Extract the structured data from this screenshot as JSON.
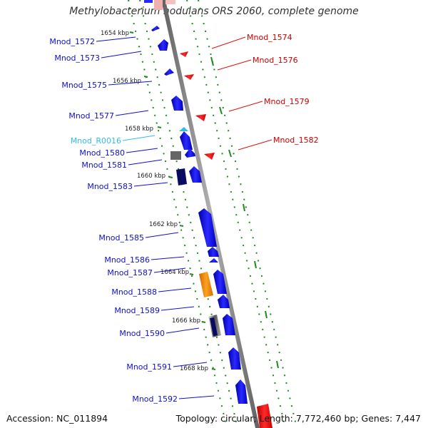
{
  "title": "Methylobacterium nodulans ORS 2060, complete genome",
  "accession_label": "Accession: NC_011894",
  "topology_label": "Topology: circular; Length: 7,772,460 bp; Genes: 7,447",
  "kbp_ticks": [
    "1654 kbp",
    "1656 kbp",
    "1658 kbp",
    "1660 kbp",
    "1662 kbp",
    "1664 kbp",
    "1666 kbp",
    "1668 kbp"
  ],
  "left_labels": [
    {
      "text": "Mnod_1572",
      "kind": "cds"
    },
    {
      "text": "Mnod_1573",
      "kind": "cds"
    },
    {
      "text": "Mnod_1575",
      "kind": "cds"
    },
    {
      "text": "Mnod_1577",
      "kind": "cds"
    },
    {
      "text": "Mnod_R0016",
      "kind": "rna"
    },
    {
      "text": "Mnod_1580",
      "kind": "cds"
    },
    {
      "text": "Mnod_1581",
      "kind": "cds"
    },
    {
      "text": "Mnod_1583",
      "kind": "cds"
    },
    {
      "text": "Mnod_1585",
      "kind": "cds"
    },
    {
      "text": "Mnod_1586",
      "kind": "cds"
    },
    {
      "text": "Mnod_1587",
      "kind": "cds"
    },
    {
      "text": "Mnod_1588",
      "kind": "cds"
    },
    {
      "text": "Mnod_1589",
      "kind": "cds"
    },
    {
      "text": "Mnod_1590",
      "kind": "cds"
    },
    {
      "text": "Mnod_1591",
      "kind": "cds"
    },
    {
      "text": "Mnod_1592",
      "kind": "cds"
    }
  ],
  "right_labels": [
    {
      "text": "Mnod_1574"
    },
    {
      "text": "Mnod_1576"
    },
    {
      "text": "Mnod_1579"
    },
    {
      "text": "Mnod_1582"
    }
  ],
  "colors": {
    "forward_gene": "#1010e0",
    "reverse_gene": "#e01010",
    "rna": "#33bbee",
    "orange_feature": "#ee8800",
    "backbone": "#909090",
    "dots": "#228822",
    "dark_feature": "#0a0a60",
    "gray_feature": "#666666"
  }
}
